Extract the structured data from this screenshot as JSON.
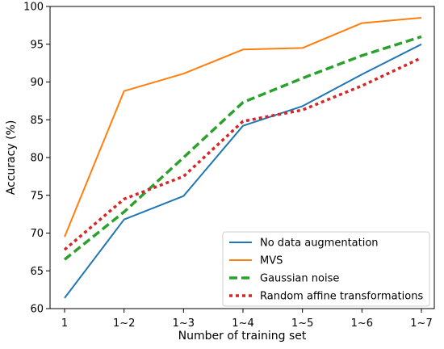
{
  "chart_data": {
    "type": "line",
    "title": "",
    "xlabel": "Number of training set",
    "ylabel": "Accuracy (%)",
    "categories": [
      "1",
      "1~2",
      "1~3",
      "1~4",
      "1~5",
      "1~6",
      "1~7"
    ],
    "ylim": [
      60,
      100
    ],
    "yticks": [
      60,
      65,
      70,
      75,
      80,
      85,
      90,
      95,
      100
    ],
    "grid": false,
    "legend_position": "bottom-right",
    "series": [
      {
        "name": "No data augmentation",
        "color": "#1f77b4",
        "style": "solid",
        "values": [
          61.4,
          71.8,
          74.9,
          84.2,
          86.8,
          91.0,
          95.0
        ]
      },
      {
        "name": "MVS",
        "color": "#ff7f0e",
        "style": "solid",
        "values": [
          69.5,
          88.8,
          91.1,
          94.3,
          94.5,
          97.8,
          98.5
        ]
      },
      {
        "name": "Gaussian noise",
        "color": "#2ca02c",
        "style": "dashed",
        "values": [
          66.5,
          72.8,
          80.0,
          87.3,
          90.5,
          93.5,
          96.0
        ]
      },
      {
        "name": "Random affine transformations",
        "color": "#d62728",
        "style": "dotted",
        "values": [
          67.8,
          74.5,
          77.5,
          84.8,
          86.3,
          89.5,
          93.2
        ]
      }
    ]
  }
}
